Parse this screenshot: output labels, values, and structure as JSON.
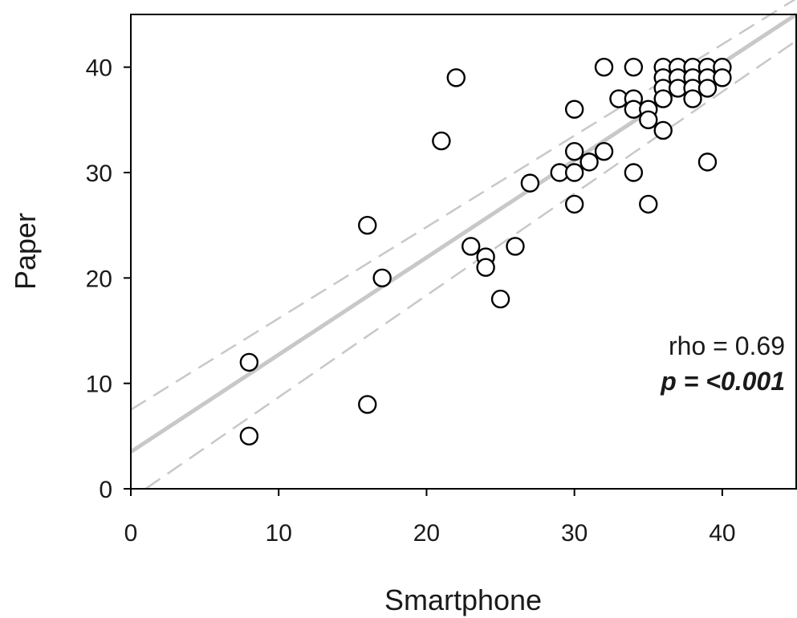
{
  "chart_data": {
    "type": "scatter",
    "title": "",
    "xlabel": "Smartphone",
    "ylabel": "Paper",
    "xlim": [
      0,
      45
    ],
    "ylim": [
      0,
      45
    ],
    "x_ticks": [
      0,
      10,
      20,
      30,
      40
    ],
    "y_ticks": [
      0,
      10,
      20,
      30,
      40
    ],
    "grid": false,
    "legend": "none",
    "marker": "open-circle",
    "colors": {
      "points": "#000000",
      "fit_line": "#c8c8c8",
      "ci_line": "#c8c8c8",
      "axes": "#000000"
    },
    "points": [
      {
        "x": 8,
        "y": 12
      },
      {
        "x": 8,
        "y": 5
      },
      {
        "x": 16,
        "y": 25
      },
      {
        "x": 16,
        "y": 8
      },
      {
        "x": 17,
        "y": 20
      },
      {
        "x": 21,
        "y": 33
      },
      {
        "x": 22,
        "y": 39
      },
      {
        "x": 23,
        "y": 23
      },
      {
        "x": 24,
        "y": 22
      },
      {
        "x": 24,
        "y": 21
      },
      {
        "x": 25,
        "y": 18
      },
      {
        "x": 26,
        "y": 23
      },
      {
        "x": 27,
        "y": 29
      },
      {
        "x": 29,
        "y": 30
      },
      {
        "x": 30,
        "y": 36
      },
      {
        "x": 30,
        "y": 32
      },
      {
        "x": 30,
        "y": 30
      },
      {
        "x": 30,
        "y": 27
      },
      {
        "x": 31,
        "y": 31
      },
      {
        "x": 32,
        "y": 40
      },
      {
        "x": 32,
        "y": 32
      },
      {
        "x": 33,
        "y": 37
      },
      {
        "x": 34,
        "y": 40
      },
      {
        "x": 34,
        "y": 37
      },
      {
        "x": 34,
        "y": 36
      },
      {
        "x": 34,
        "y": 30
      },
      {
        "x": 35,
        "y": 36
      },
      {
        "x": 35,
        "y": 35
      },
      {
        "x": 35,
        "y": 27
      },
      {
        "x": 36,
        "y": 40
      },
      {
        "x": 36,
        "y": 39
      },
      {
        "x": 36,
        "y": 38
      },
      {
        "x": 36,
        "y": 37
      },
      {
        "x": 36,
        "y": 34
      },
      {
        "x": 37,
        "y": 40
      },
      {
        "x": 37,
        "y": 39
      },
      {
        "x": 37,
        "y": 38
      },
      {
        "x": 38,
        "y": 40
      },
      {
        "x": 38,
        "y": 39
      },
      {
        "x": 38,
        "y": 38
      },
      {
        "x": 38,
        "y": 37
      },
      {
        "x": 39,
        "y": 40
      },
      {
        "x": 39,
        "y": 39
      },
      {
        "x": 39,
        "y": 38
      },
      {
        "x": 39,
        "y": 31
      },
      {
        "x": 40,
        "y": 40
      },
      {
        "x": 40,
        "y": 39
      }
    ],
    "regression_line": {
      "x": [
        0,
        45
      ],
      "y": [
        3.5,
        45
      ]
    },
    "confidence_band": {
      "upper": {
        "x": [
          0,
          45
        ],
        "y": [
          7.5,
          46.5
        ]
      },
      "lower": {
        "x": [
          1,
          45
        ],
        "y": [
          0,
          42.5
        ]
      }
    },
    "annotations": {
      "rho": "rho = 0.69",
      "p": "p = <0.001"
    }
  }
}
